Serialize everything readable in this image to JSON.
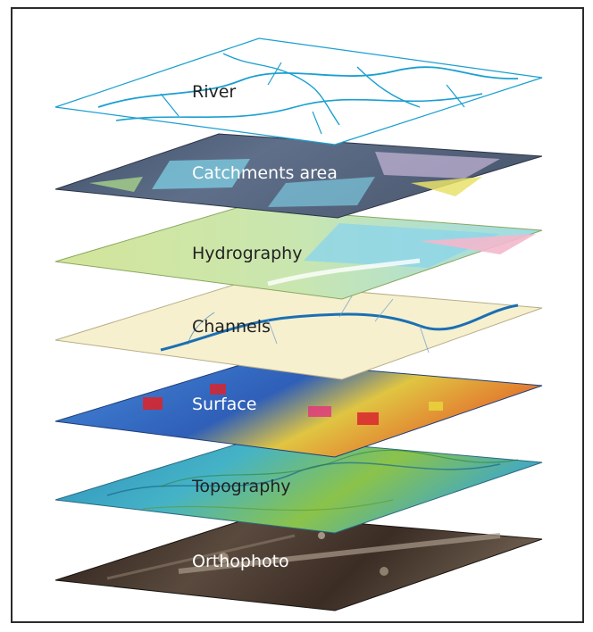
{
  "colors": {
    "frame_border": "#2b2b2b",
    "label_dark": "#222222",
    "label_light": "#ffffff"
  },
  "layers": [
    {
      "label": "River",
      "base": "#ffffff",
      "detail": "#1a9fd0",
      "text_color": "#222222"
    },
    {
      "label": "Catchments area",
      "base": "#4a5c72",
      "detail": "#7cc9df",
      "text_color": "#ffffff"
    },
    {
      "label": "Hydrography",
      "base": "#d8e89a",
      "detail": "#8fd6e8",
      "text_color": "#222222"
    },
    {
      "label": "Channels",
      "base": "#f6f0cf",
      "detail": "#1b6fb3",
      "text_color": "#222222"
    },
    {
      "label": "Surface",
      "base": "#3a8fd0",
      "detail": "#e8d23c",
      "text_color": "#ffffff"
    },
    {
      "label": "Topography",
      "base": "#3aa7c9",
      "detail": "#8cc63f",
      "text_color": "#222222"
    },
    {
      "label": "Orthophoto",
      "base": "#3b2a22",
      "detail": "#a89a8a",
      "text_color": "#ffffff"
    }
  ]
}
